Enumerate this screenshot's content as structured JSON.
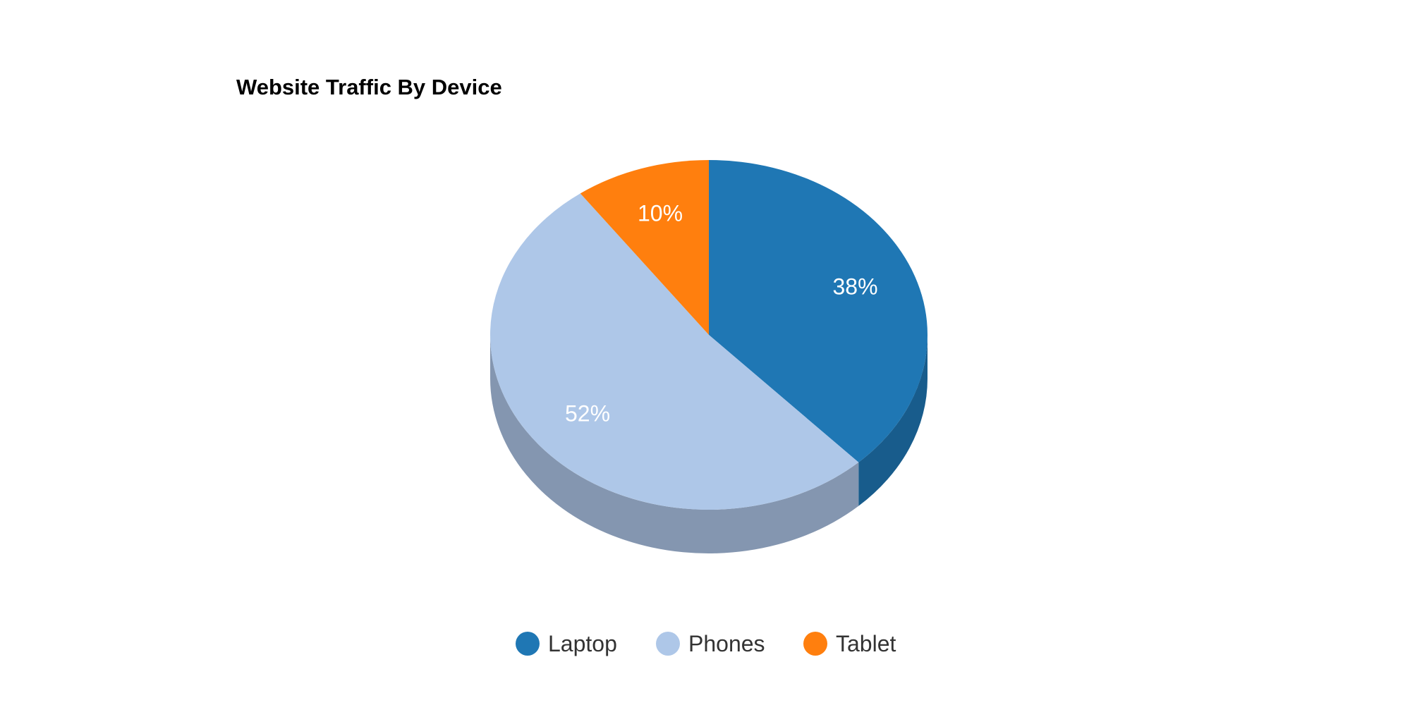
{
  "chart_data": {
    "type": "pie",
    "title": "Website Traffic By Device",
    "is_3d": true,
    "legend_position": "bottom",
    "slices": [
      {
        "name": "Laptop",
        "value": 38,
        "label": "38%",
        "color": "#1f77b4",
        "side_color": "#185c8c"
      },
      {
        "name": "Phones",
        "value": 52,
        "label": "52%",
        "color": "#aec7e8",
        "side_color": "#8496b0"
      },
      {
        "name": "Tablet",
        "value": 10,
        "label": "10%",
        "color": "#ff7f0e",
        "side_color": "#c2600a"
      }
    ]
  }
}
